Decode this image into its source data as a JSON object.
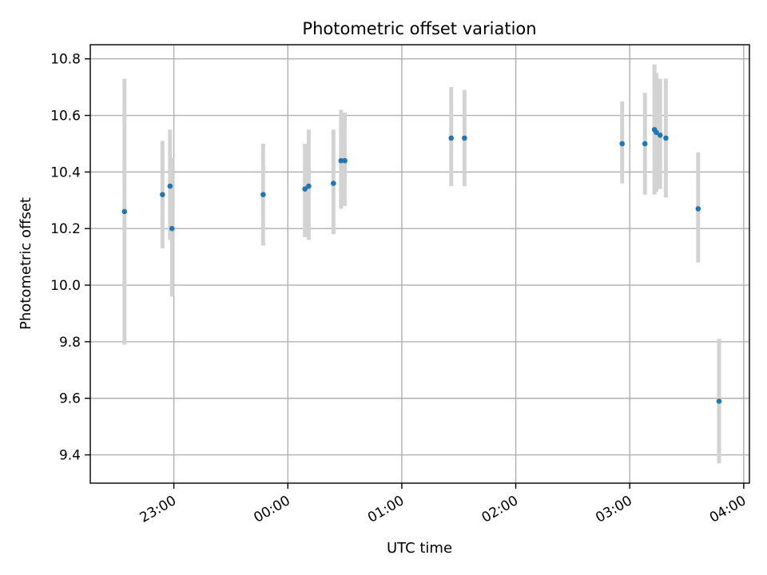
{
  "chart_data": {
    "type": "scatter",
    "title": "Photometric offset variation",
    "xlabel": "UTC time",
    "ylabel": "Photometric offset",
    "grid": true,
    "x_unit": "time of day (UTC), points span midnight",
    "xlim": [
      "22:16",
      "04:03"
    ],
    "ylim": [
      9.3,
      10.85
    ],
    "x_ticks": [
      "23:00",
      "00:00",
      "01:00",
      "02:00",
      "03:00",
      "04:00"
    ],
    "y_ticks": [
      "9.4",
      "9.6",
      "9.8",
      "10.0",
      "10.2",
      "10.4",
      "10.6",
      "10.8"
    ],
    "colors": {
      "point": "#1f77b4",
      "error_bar": "#d3d3d3",
      "grid": "#b0b0b0"
    },
    "series": [
      {
        "points": [
          {
            "x": "22:34",
            "y": 10.26,
            "low": 9.79,
            "high": 10.73
          },
          {
            "x": "22:54",
            "y": 10.32,
            "low": 10.13,
            "high": 10.51
          },
          {
            "x": "22:58",
            "y": 10.35,
            "low": 10.16,
            "high": 10.55
          },
          {
            "x": "22:59",
            "y": 10.2,
            "low": 9.96,
            "high": 10.45
          },
          {
            "x": "23:47",
            "y": 10.32,
            "low": 10.14,
            "high": 10.5
          },
          {
            "x": "00:09",
            "y": 10.34,
            "low": 10.17,
            "high": 10.5
          },
          {
            "x": "00:11",
            "y": 10.35,
            "low": 10.16,
            "high": 10.55
          },
          {
            "x": "00:24",
            "y": 10.36,
            "low": 10.18,
            "high": 10.55
          },
          {
            "x": "00:28",
            "y": 10.44,
            "low": 10.27,
            "high": 10.62
          },
          {
            "x": "00:30",
            "y": 10.44,
            "low": 10.28,
            "high": 10.61
          },
          {
            "x": "01:26",
            "y": 10.52,
            "low": 10.35,
            "high": 10.7
          },
          {
            "x": "01:33",
            "y": 10.52,
            "low": 10.35,
            "high": 10.69
          },
          {
            "x": "02:56",
            "y": 10.5,
            "low": 10.36,
            "high": 10.65
          },
          {
            "x": "03:08",
            "y": 10.5,
            "low": 10.32,
            "high": 10.68
          },
          {
            "x": "03:13",
            "y": 10.55,
            "low": 10.32,
            "high": 10.78
          },
          {
            "x": "03:14",
            "y": 10.54,
            "low": 10.33,
            "high": 10.75
          },
          {
            "x": "03:16",
            "y": 10.53,
            "low": 10.34,
            "high": 10.73
          },
          {
            "x": "03:19",
            "y": 10.52,
            "low": 10.31,
            "high": 10.73
          },
          {
            "x": "03:36",
            "y": 10.27,
            "low": 10.08,
            "high": 10.47
          },
          {
            "x": "03:47",
            "y": 9.59,
            "low": 9.37,
            "high": 9.81
          }
        ]
      }
    ]
  }
}
